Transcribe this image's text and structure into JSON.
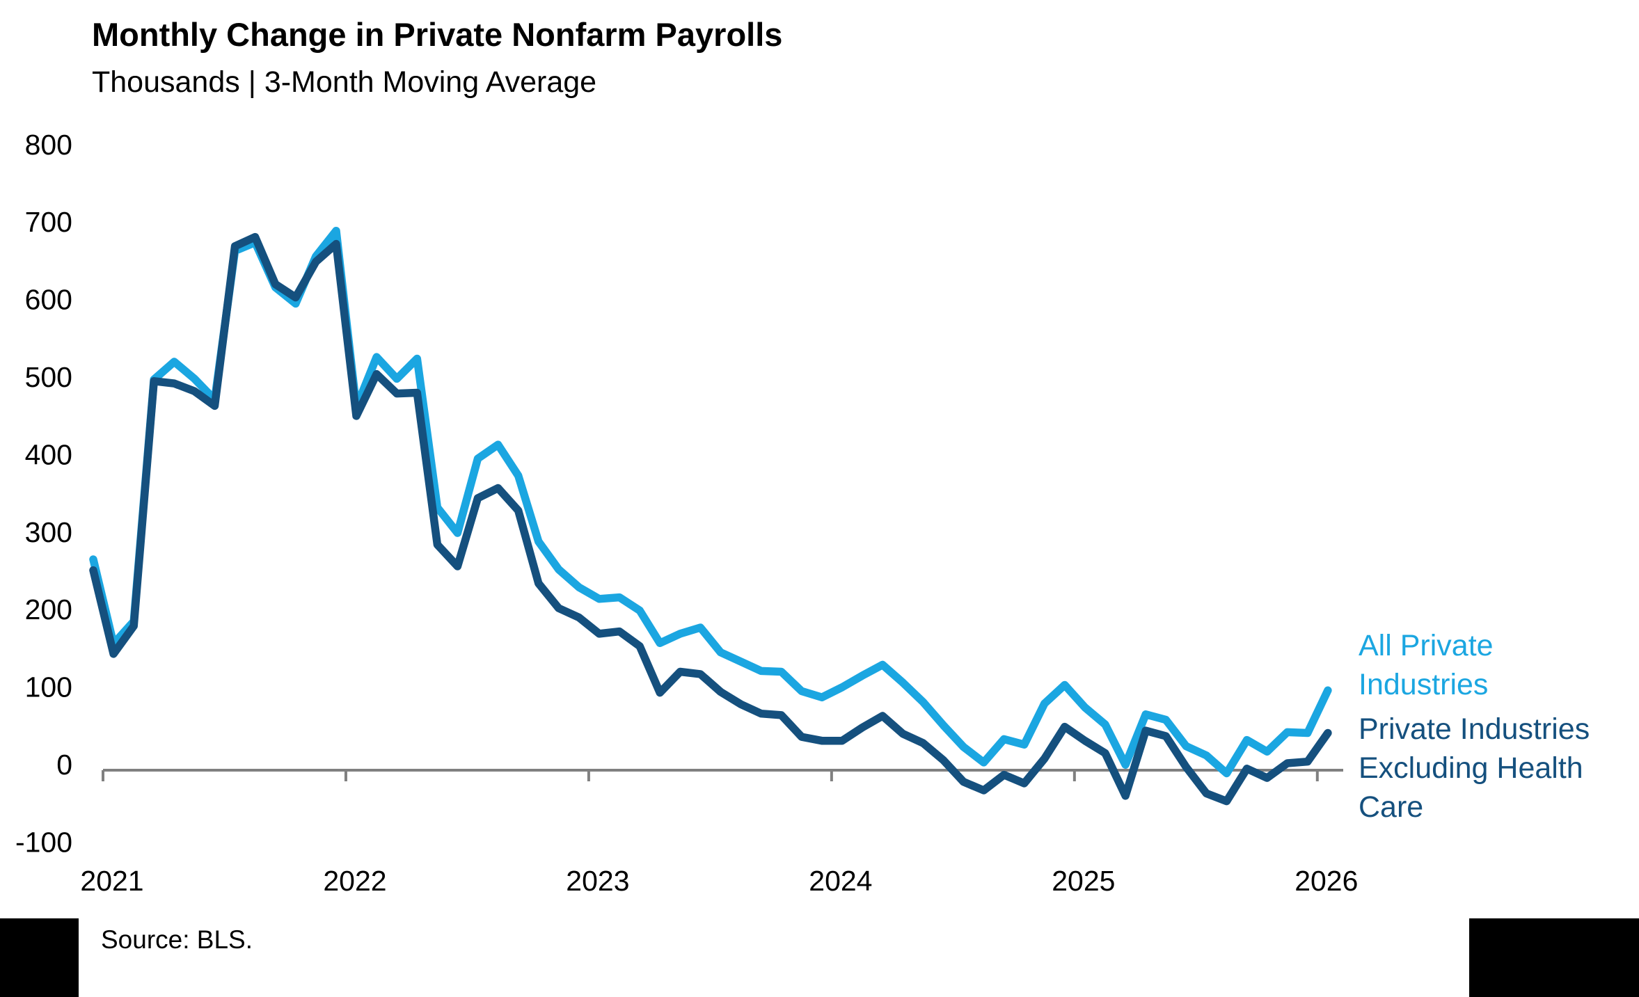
{
  "header": {
    "title": "Monthly Change in Private Nonfarm Payrolls",
    "subtitle": "Thousands | 3-Month Moving Average"
  },
  "footer": {
    "source": "Source: BLS."
  },
  "colors": {
    "all_private": "#1BA6E1",
    "ex_health_care": "#15507E",
    "axis": "#808080",
    "text": "#000000"
  },
  "chart_data": {
    "type": "line",
    "title": "Monthly Change in Private Nonfarm Payrolls",
    "subtitle": "Thousands | 3-Month Moving Average",
    "ylabel": "Thousands",
    "ylim": [
      -100,
      800
    ],
    "y_ticks": [
      800,
      700,
      600,
      500,
      400,
      300,
      200,
      100,
      0,
      -100
    ],
    "x_tick_labels": [
      "2021",
      "2022",
      "2023",
      "2024",
      "2025",
      "2026"
    ],
    "grid": "zero-line-only",
    "legend_position": "right",
    "x": [
      "2020-12",
      "2021-01",
      "2021-02",
      "2021-03",
      "2021-04",
      "2021-05",
      "2021-06",
      "2021-07",
      "2021-08",
      "2021-09",
      "2021-10",
      "2021-11",
      "2021-12",
      "2022-01",
      "2022-02",
      "2022-03",
      "2022-04",
      "2022-05",
      "2022-06",
      "2022-07",
      "2022-08",
      "2022-09",
      "2022-10",
      "2022-11",
      "2022-12",
      "2023-01",
      "2023-02",
      "2023-03",
      "2023-04",
      "2023-05",
      "2023-06",
      "2023-07",
      "2023-08",
      "2023-09",
      "2023-10",
      "2023-11",
      "2023-12",
      "2024-01",
      "2024-02",
      "2024-03",
      "2024-04",
      "2024-05",
      "2024-06",
      "2024-07",
      "2024-08",
      "2024-09",
      "2024-10",
      "2024-11",
      "2024-12",
      "2025-01",
      "2025-02",
      "2025-03",
      "2025-04",
      "2025-05",
      "2025-06",
      "2025-07",
      "2025-08",
      "2025-09",
      "2025-10",
      "2025-11",
      "2025-12",
      "2026-01"
    ],
    "series": [
      {
        "name": "All Private Industries",
        "color": "#1BA6E1",
        "values": [
          272,
          163,
          192,
          504,
          527,
          505,
          478,
          670,
          681,
          623,
          602,
          663,
          696,
          468,
          533,
          505,
          531,
          339,
          306,
          402,
          420,
          380,
          295,
          259,
          236,
          221,
          223,
          206,
          164,
          176,
          184,
          152,
          140,
          128,
          127,
          102,
          94,
          107,
          122,
          136,
          113,
          88,
          58,
          30,
          10,
          40,
          33,
          86,
          110,
          81,
          59,
          7,
          72,
          65,
          31,
          19,
          -4,
          39,
          24,
          49,
          48,
          103
        ]
      },
      {
        "name": "Private Industries Excluding Health Care",
        "color": "#15507E",
        "values": [
          258,
          150,
          186,
          502,
          499,
          489,
          470,
          676,
          688,
          627,
          610,
          656,
          679,
          457,
          511,
          486,
          487,
          291,
          263,
          351,
          364,
          335,
          241,
          209,
          197,
          176,
          179,
          160,
          100,
          127,
          124,
          101,
          85,
          73,
          71,
          43,
          38,
          38,
          55,
          70,
          47,
          35,
          13,
          -15,
          -26,
          -6,
          -17,
          15,
          56,
          38,
          22,
          -33,
          51,
          44,
          4,
          -30,
          -40,
          2,
          -10,
          9,
          11,
          48
        ]
      }
    ]
  }
}
